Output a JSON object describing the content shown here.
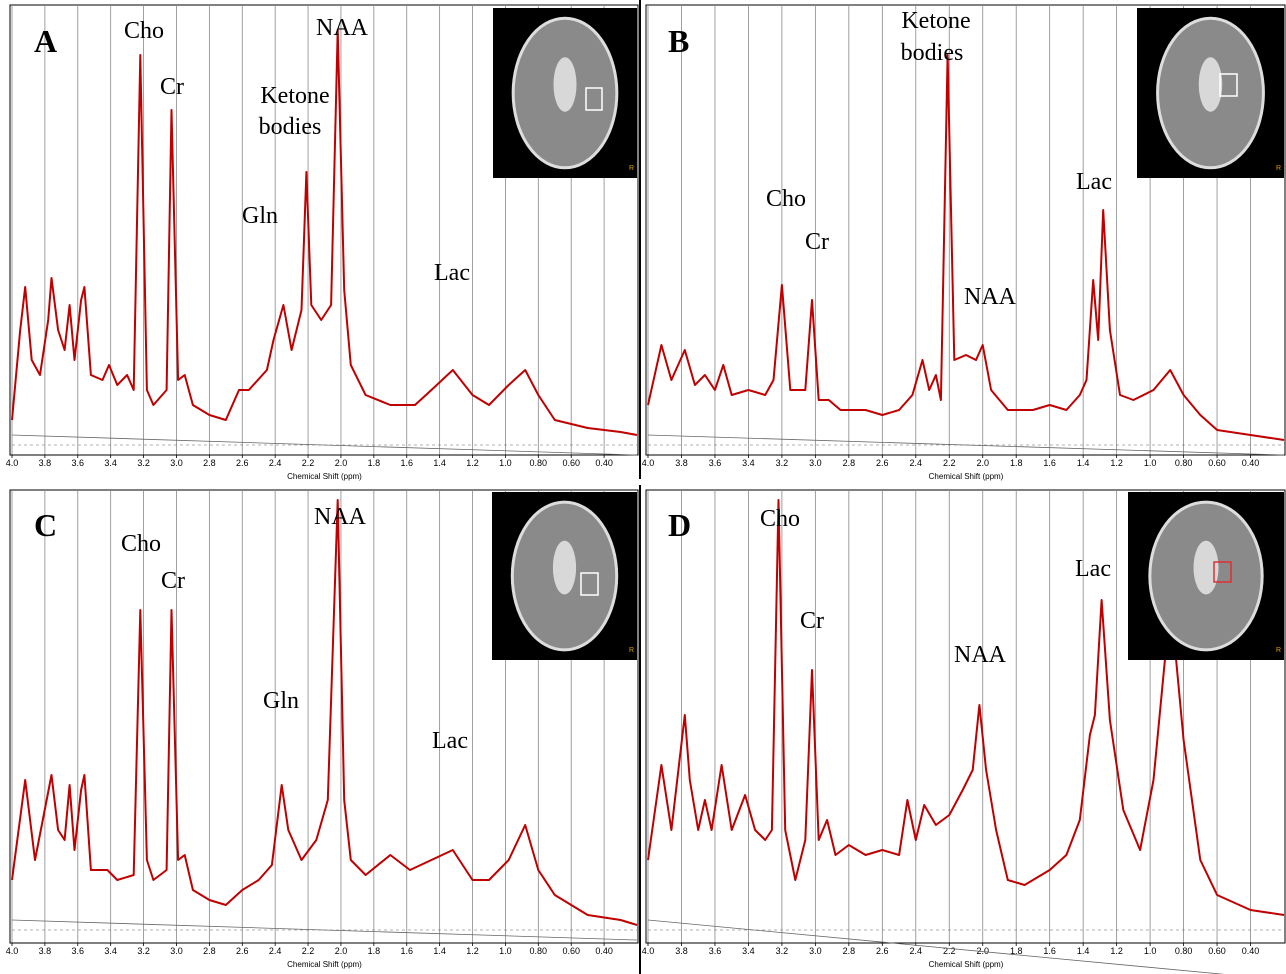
{
  "chart_data": [
    {
      "type": "line",
      "label": "A",
      "xlabel": "Chemical Shift (ppm)",
      "inset_label": "R",
      "color": "#c00000",
      "grid": true,
      "annotations": [
        "Cho",
        "Cr",
        "NAA",
        "Ketone",
        "bodies",
        "Gln",
        "Lac"
      ],
      "xlim": [
        4.0,
        0.2
      ],
      "ylim": [
        0,
        450
      ],
      "xticks": [
        {
          "value": 4,
          "label": "4.0"
        },
        3.8,
        3.6,
        3.4,
        3.2,
        {
          "value": 3,
          "label": "3.0"
        },
        2.8,
        2.6,
        2.4,
        2.2,
        {
          "value": 2,
          "label": "2.0"
        },
        1.8,
        1.6,
        1.4,
        1.2,
        {
          "value": 1,
          "label": "1.0"
        },
        {
          "value": 0.8,
          "label": "0.80"
        },
        {
          "value": 0.6,
          "label": "0.60"
        },
        {
          "value": 0.4,
          "label": "0.40"
        }
      ],
      "x": [
        4.0,
        3.95,
        3.92,
        3.88,
        3.83,
        3.78,
        3.76,
        3.72,
        3.68,
        3.65,
        3.62,
        3.58,
        3.56,
        3.52,
        3.45,
        3.41,
        3.36,
        3.3,
        3.26,
        3.22,
        3.18,
        3.14,
        3.06,
        3.03,
        2.99,
        2.95,
        2.9,
        2.8,
        2.7,
        2.62,
        2.56,
        2.45,
        2.41,
        2.35,
        2.3,
        2.24,
        2.21,
        2.18,
        2.12,
        2.06,
        2.02,
        1.98,
        1.94,
        1.85,
        1.7,
        1.55,
        1.45,
        1.32,
        1.2,
        1.1,
        0.98,
        0.88,
        0.8,
        0.7,
        0.5,
        0.3,
        0.2
      ],
      "values": [
        35,
        125,
        168,
        95,
        80,
        135,
        177,
        125,
        105,
        150,
        95,
        155,
        168,
        80,
        75,
        90,
        70,
        80,
        65,
        400,
        65,
        50,
        65,
        345,
        75,
        80,
        50,
        40,
        35,
        65,
        65,
        85,
        115,
        150,
        105,
        145,
        283,
        150,
        135,
        150,
        425,
        165,
        90,
        60,
        50,
        50,
        65,
        85,
        60,
        50,
        70,
        85,
        60,
        35,
        27,
        23,
        20
      ]
    },
    {
      "type": "line",
      "label": "B",
      "xlabel": "Chemical Shift (ppm)",
      "inset_label": "R",
      "color": "#c00000",
      "grid": true,
      "annotations": [
        "Ketone",
        "bodies",
        "Cho",
        "Cr",
        "NAA",
        "Lac"
      ],
      "xlim": [
        4.0,
        0.2
      ],
      "ylim": [
        0,
        450
      ],
      "xticks": [
        {
          "value": 4,
          "label": "4.0"
        },
        3.8,
        3.6,
        3.4,
        3.2,
        {
          "value": 3,
          "label": "3.0"
        },
        2.8,
        2.6,
        2.4,
        2.2,
        {
          "value": 2,
          "label": "2.0"
        },
        1.8,
        1.6,
        1.4,
        1.2,
        {
          "value": 1,
          "label": "1.0"
        },
        {
          "value": 0.8,
          "label": "0.80"
        },
        {
          "value": 0.6,
          "label": "0.60"
        },
        {
          "value": 0.4,
          "label": "0.40"
        }
      ],
      "x": [
        4.0,
        3.92,
        3.86,
        3.78,
        3.72,
        3.66,
        3.6,
        3.55,
        3.5,
        3.4,
        3.3,
        3.25,
        3.2,
        3.15,
        3.06,
        3.02,
        2.98,
        2.92,
        2.85,
        2.7,
        2.6,
        2.5,
        2.42,
        2.36,
        2.32,
        2.28,
        2.25,
        2.21,
        2.17,
        2.1,
        2.04,
        2.0,
        1.95,
        1.85,
        1.7,
        1.6,
        1.5,
        1.42,
        1.38,
        1.34,
        1.31,
        1.28,
        1.24,
        1.18,
        1.1,
        0.98,
        0.88,
        0.8,
        0.7,
        0.6,
        0.4,
        0.2
      ],
      "values": [
        50,
        110,
        75,
        105,
        70,
        80,
        65,
        90,
        60,
        65,
        60,
        75,
        170,
        65,
        65,
        155,
        55,
        55,
        45,
        45,
        40,
        45,
        60,
        95,
        65,
        80,
        55,
        400,
        95,
        100,
        95,
        110,
        65,
        45,
        45,
        50,
        45,
        60,
        75,
        175,
        115,
        245,
        125,
        60,
        55,
        65,
        85,
        60,
        40,
        25,
        20,
        15
      ]
    },
    {
      "type": "line",
      "label": "C",
      "xlabel": "Chemical Shift (ppm)",
      "inset_label": "R",
      "color": "#c00000",
      "grid": true,
      "annotations": [
        "Cho",
        "Cr",
        "NAA",
        "Gln",
        "Lac"
      ],
      "xlim": [
        4.0,
        0.2
      ],
      "ylim": [
        0,
        450
      ],
      "xticks": [
        {
          "value": 4,
          "label": "4.0"
        },
        3.8,
        3.6,
        3.4,
        3.2,
        {
          "value": 3,
          "label": "3.0"
        },
        2.8,
        2.6,
        2.4,
        2.2,
        {
          "value": 2,
          "label": "2.0"
        },
        1.8,
        1.6,
        1.4,
        1.2,
        {
          "value": 1,
          "label": "1.0"
        },
        {
          "value": 0.8,
          "label": "0.80"
        },
        {
          "value": 0.6,
          "label": "0.60"
        },
        {
          "value": 0.4,
          "label": "0.40"
        }
      ],
      "x": [
        4.0,
        3.92,
        3.86,
        3.76,
        3.72,
        3.68,
        3.65,
        3.62,
        3.58,
        3.56,
        3.52,
        3.42,
        3.36,
        3.26,
        3.22,
        3.18,
        3.14,
        3.06,
        3.03,
        2.99,
        2.95,
        2.9,
        2.8,
        2.7,
        2.6,
        2.5,
        2.42,
        2.36,
        2.32,
        2.24,
        2.15,
        2.08,
        2.02,
        1.98,
        1.94,
        1.85,
        1.7,
        1.58,
        1.45,
        1.32,
        1.2,
        1.1,
        0.98,
        0.88,
        0.8,
        0.7,
        0.5,
        0.3,
        0.2
      ],
      "values": [
        60,
        160,
        80,
        165,
        110,
        100,
        155,
        90,
        150,
        165,
        70,
        70,
        60,
        65,
        330,
        80,
        60,
        70,
        330,
        80,
        85,
        50,
        40,
        35,
        50,
        60,
        75,
        155,
        110,
        80,
        100,
        140,
        440,
        140,
        80,
        65,
        85,
        70,
        80,
        90,
        60,
        60,
        80,
        115,
        70,
        45,
        25,
        20,
        15
      ]
    },
    {
      "type": "line",
      "label": "D",
      "xlabel": "Chemical Shift (ppm)",
      "inset_label": "R",
      "color": "#c00000",
      "grid": true,
      "annotations": [
        "Cho",
        "Cr",
        "NAA",
        "Lac"
      ],
      "xlim": [
        4.0,
        0.2
      ],
      "ylim": [
        0,
        450
      ],
      "xticks": [
        {
          "value": 4,
          "label": "4.0"
        },
        3.8,
        3.6,
        3.4,
        3.2,
        {
          "value": 3,
          "label": "3.0"
        },
        2.8,
        2.6,
        2.4,
        2.2,
        {
          "value": 2,
          "label": "2.0"
        },
        1.8,
        1.6,
        1.4,
        1.2,
        {
          "value": 1,
          "label": "1.0"
        },
        {
          "value": 0.8,
          "label": "0.80"
        },
        {
          "value": 0.6,
          "label": "0.60"
        },
        {
          "value": 0.4,
          "label": "0.40"
        }
      ],
      "x": [
        4.0,
        3.92,
        3.86,
        3.78,
        3.75,
        3.7,
        3.66,
        3.62,
        3.56,
        3.5,
        3.42,
        3.36,
        3.3,
        3.26,
        3.22,
        3.18,
        3.12,
        3.06,
        3.02,
        2.98,
        2.93,
        2.88,
        2.8,
        2.7,
        2.6,
        2.5,
        2.45,
        2.4,
        2.35,
        2.28,
        2.2,
        2.12,
        2.06,
        2.02,
        1.98,
        1.92,
        1.85,
        1.75,
        1.6,
        1.5,
        1.42,
        1.36,
        1.33,
        1.29,
        1.24,
        1.16,
        1.06,
        0.98,
        0.9,
        0.85,
        0.8,
        0.7,
        0.6,
        0.4,
        0.2
      ],
      "values": [
        80,
        175,
        110,
        225,
        160,
        110,
        140,
        110,
        175,
        110,
        145,
        110,
        100,
        110,
        440,
        110,
        60,
        100,
        270,
        100,
        120,
        85,
        95,
        85,
        90,
        85,
        140,
        100,
        135,
        115,
        125,
        150,
        170,
        235,
        170,
        110,
        60,
        55,
        70,
        85,
        120,
        205,
        225,
        340,
        220,
        130,
        90,
        160,
        300,
        290,
        200,
        80,
        45,
        30,
        25
      ]
    }
  ]
}
